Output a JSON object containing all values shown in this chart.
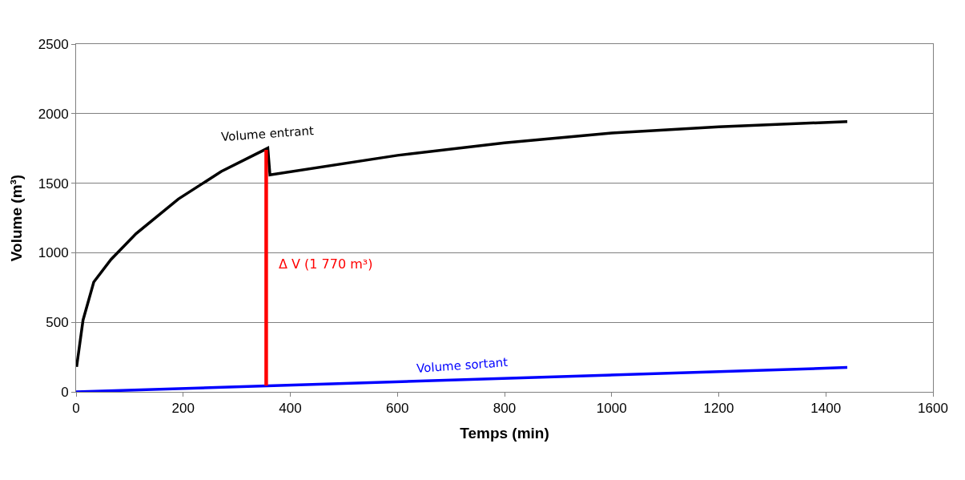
{
  "chart_data": {
    "type": "line",
    "xlabel": "Temps (min)",
    "ylabel": "Volume (m³)",
    "xlim": [
      0,
      1600
    ],
    "xticks": [
      0,
      200,
      400,
      600,
      800,
      1000,
      1200,
      1400,
      1600
    ],
    "ylim": [
      0,
      2500
    ],
    "yticks": [
      0,
      500,
      1000,
      1500,
      2000,
      2500
    ],
    "grid": "y",
    "legend": false,
    "marker": "none",
    "series": [
      {
        "name": "Volume entrant",
        "color": "#000000",
        "x": [
          1,
          13,
          33,
          65,
          112,
          191,
          271,
          358,
          362,
          600,
          800,
          1000,
          1200,
          1440
        ],
        "values": [
          180,
          516,
          789,
          951,
          1137,
          1386,
          1584,
          1752,
          1560,
          1700,
          1790,
          1860,
          1905,
          1943
        ]
      },
      {
        "name": "Volume sortant",
        "color": "#0000ff",
        "x": [
          0,
          1440
        ],
        "values": [
          0,
          175
        ]
      },
      {
        "color": "#ff0000",
        "x": [
          355,
          355
        ],
        "values": [
          45,
          1740
        ]
      }
    ],
    "annotations": [
      {
        "text": "Δ V (1 770 m³)",
        "x": 355,
        "y": 920
      }
    ]
  }
}
